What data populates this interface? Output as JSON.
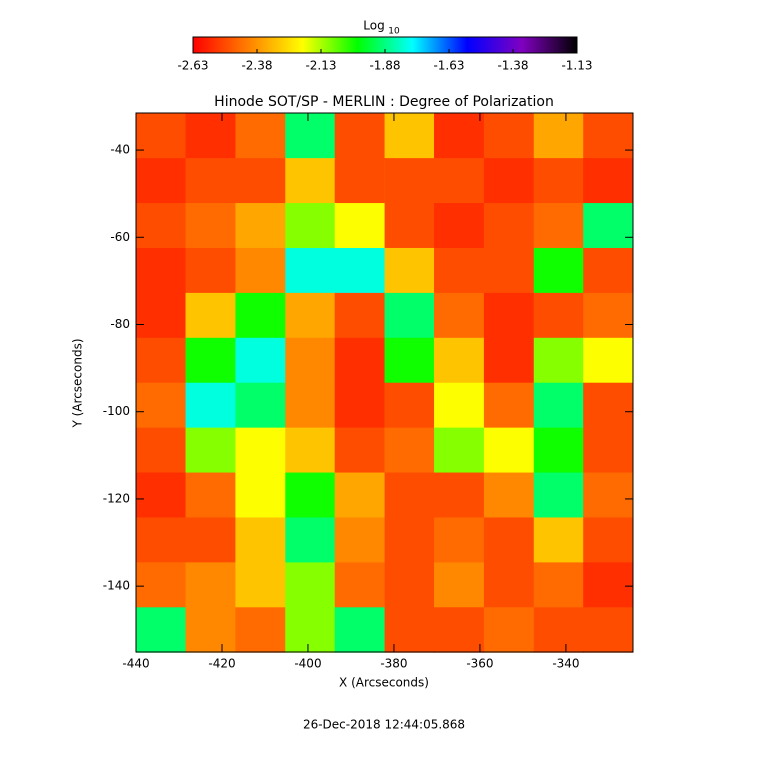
{
  "chart_data": {
    "type": "heatmap",
    "title": "Hinode SOT/SP - MERLIN : Degree of Polarization",
    "xlabel": "X (Arcseconds)",
    "ylabel": "Y (Arcseconds)",
    "timestamp": "26-Dec-2018 12:44:05.868",
    "colorbar_label": "Log",
    "colorbar_label_sub": "10",
    "colormap": [
      "#ff0000",
      "#ff7f00",
      "#ffff00",
      "#00ff00",
      "#00ffff",
      "#0000ff",
      "#8000c0",
      "#000000"
    ],
    "clim": [
      -2.63,
      -1.13
    ],
    "cticks": [
      -2.63,
      -2.38,
      -2.13,
      -1.88,
      -1.63,
      -1.38,
      -1.13
    ],
    "xlim": [
      -440,
      -324.4
    ],
    "ylim": [
      -155.1,
      -31.5
    ],
    "xticks": [
      -440,
      -420,
      -400,
      -380,
      -360,
      -340
    ],
    "yticks": [
      -40,
      -60,
      -80,
      -100,
      -120,
      -140
    ],
    "x": [
      -434.2,
      -422.7,
      -411.1,
      -399.5,
      -388,
      -376.4,
      -364.9,
      -353.3,
      -341.7,
      -330.2
    ],
    "y": [
      -36.7,
      -47,
      -57.3,
      -67.6,
      -77.9,
      -88.2,
      -98.5,
      -108.8,
      -119.1,
      -129.4,
      -139.7,
      -150
    ],
    "z": [
      [
        -2.5,
        -2.55,
        -2.45,
        -1.9,
        -2.5,
        -2.3,
        -2.55,
        -2.5,
        -2.35,
        -2.5
      ],
      [
        -2.55,
        -2.5,
        -2.5,
        -2.3,
        -2.5,
        -2.5,
        -2.5,
        -2.55,
        -2.5,
        -2.55
      ],
      [
        -2.5,
        -2.45,
        -2.35,
        -2.1,
        -2.2,
        -2.5,
        -2.55,
        -2.5,
        -2.45,
        -1.9
      ],
      [
        -2.55,
        -2.5,
        -2.4,
        -1.8,
        -1.8,
        -2.3,
        -2.5,
        -2.5,
        -2.0,
        -2.5
      ],
      [
        -2.55,
        -2.3,
        -2.0,
        -2.35,
        -2.5,
        -1.9,
        -2.45,
        -2.55,
        -2.5,
        -2.45
      ],
      [
        -2.5,
        -2.0,
        -1.8,
        -2.4,
        -2.55,
        -2.0,
        -2.3,
        -2.55,
        -2.1,
        -2.2
      ],
      [
        -2.45,
        -1.8,
        -1.9,
        -2.4,
        -2.55,
        -2.5,
        -2.2,
        -2.45,
        -1.9,
        -2.5
      ],
      [
        -2.5,
        -2.1,
        -2.2,
        -2.3,
        -2.5,
        -2.45,
        -2.1,
        -2.2,
        -2.0,
        -2.5
      ],
      [
        -2.55,
        -2.45,
        -2.2,
        -2.0,
        -2.35,
        -2.5,
        -2.5,
        -2.4,
        -1.9,
        -2.45
      ],
      [
        -2.5,
        -2.5,
        -2.3,
        -1.9,
        -2.4,
        -2.5,
        -2.45,
        -2.5,
        -2.3,
        -2.5
      ],
      [
        -2.45,
        -2.4,
        -2.3,
        -2.1,
        -2.45,
        -2.5,
        -2.4,
        -2.5,
        -2.45,
        -2.55
      ],
      [
        -1.9,
        -2.4,
        -2.45,
        -2.1,
        -1.9,
        -2.5,
        -2.5,
        -2.45,
        -2.5,
        -2.5
      ]
    ]
  }
}
